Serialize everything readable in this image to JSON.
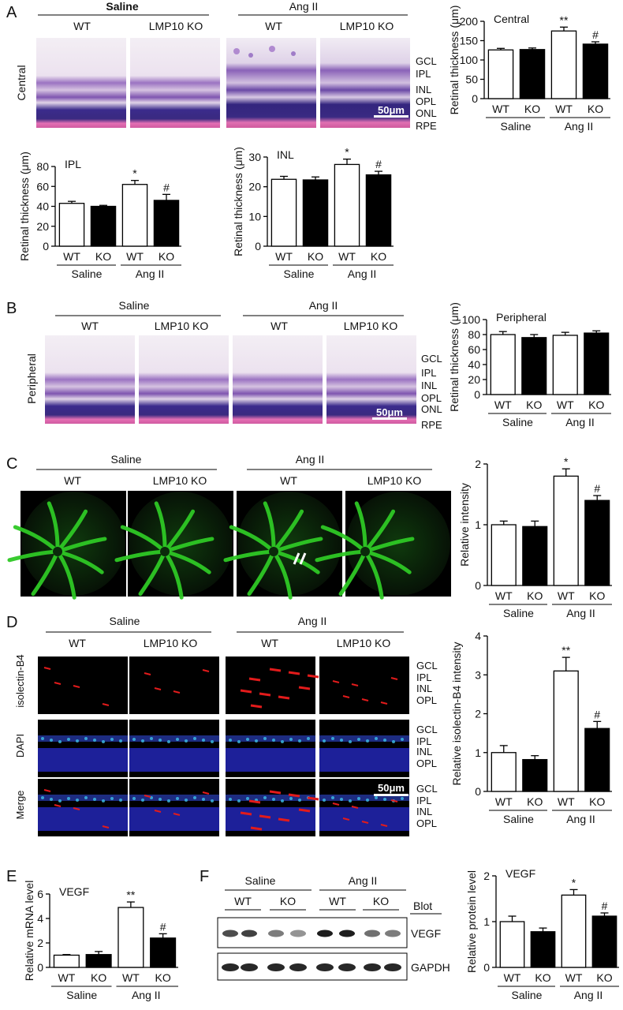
{
  "colors": {
    "wt_bar": "#ffffff",
    "ko_bar": "#000000",
    "he_stain": "#c86fa8",
    "fitc_green": "#2ec825",
    "isolectin_red": "#e21b1b",
    "dapi_blue": "#2226b4"
  },
  "labels": {
    "groups": {
      "saline": "Saline",
      "angii": "Ang II",
      "wt": "WT",
      "lmp10ko": "LMP10 KO",
      "ko": "KO"
    },
    "layers": {
      "gcl": "GCL",
      "ipl": "IPL",
      "inl": "INL",
      "opl": "OPL",
      "onl": "ONL",
      "rpe": "RPE"
    },
    "scale_bar": "50μm",
    "blot": {
      "header": "Blot",
      "vegf": "VEGF",
      "gapdh": "GAPDH"
    }
  },
  "panel_A": {
    "letter": "A",
    "row_label": "Central",
    "charts": [
      {
        "title": "Central",
        "ylabel": "Retinal thickness (μm)",
        "ticks": [
          "0",
          "50",
          "100",
          "150",
          "200"
        ]
      },
      {
        "title": "IPL",
        "ylabel": "Retinal thickness (μm)",
        "ticks": [
          "0",
          "20",
          "40",
          "60",
          "80"
        ]
      },
      {
        "title": "INL",
        "ylabel": "Retinal thickness (μm)",
        "ticks": [
          "0",
          "10",
          "20",
          "30"
        ]
      }
    ],
    "stats": {
      "double": "**",
      "single": "*",
      "hash": "#"
    }
  },
  "panel_B": {
    "letter": "B",
    "row_label": "Peripheral",
    "chart": {
      "title": "Peripheral",
      "ylabel": "Retinal thickness (μm)",
      "ticks": [
        "0",
        "20",
        "40",
        "60",
        "80",
        "100"
      ]
    }
  },
  "panel_C": {
    "letter": "C",
    "chart": {
      "ylabel": "Relative intensity",
      "ticks": [
        "0",
        "1",
        "2"
      ]
    }
  },
  "panel_D": {
    "letter": "D",
    "rows": [
      "isolectin-B4",
      "DAPI",
      "Merge"
    ],
    "chart": {
      "ylabel": "Relative isolectin-B4 intensity",
      "ticks": [
        "0",
        "1",
        "2",
        "3",
        "4"
      ]
    }
  },
  "panel_E": {
    "letter": "E",
    "chart": {
      "title": "VEGF",
      "ylabel": "Relative mRNA level",
      "ticks": [
        "0",
        "2",
        "4",
        "6"
      ]
    }
  },
  "panel_F": {
    "letter": "F",
    "chart": {
      "title": "VEGF",
      "ylabel": "Relative protein level",
      "ticks": [
        "0",
        "1",
        "2"
      ]
    }
  },
  "chart_data": [
    {
      "type": "bar",
      "title": "Central",
      "ylabel": "Retinal thickness (μm)",
      "categories": [
        "Saline WT",
        "Saline KO",
        "Ang II WT",
        "Ang II KO"
      ],
      "values": [
        126,
        127,
        175,
        141
      ],
      "errors": [
        4,
        4,
        10,
        6
      ],
      "annotations": [
        "",
        "",
        "**",
        "#"
      ],
      "ylim": [
        0,
        200
      ]
    },
    {
      "type": "bar",
      "title": "IPL",
      "ylabel": "Retinal thickness (μm)",
      "categories": [
        "Saline WT",
        "Saline KO",
        "Ang II WT",
        "Ang II KO"
      ],
      "values": [
        43,
        40,
        62,
        46
      ],
      "errors": [
        2,
        1,
        4,
        6
      ],
      "annotations": [
        "",
        "",
        "*",
        "#"
      ],
      "ylim": [
        0,
        80
      ]
    },
    {
      "type": "bar",
      "title": "INL",
      "ylabel": "Retinal thickness (μm)",
      "categories": [
        "Saline WT",
        "Saline KO",
        "Ang II WT",
        "Ang II KO"
      ],
      "values": [
        22.5,
        22.3,
        27.5,
        24
      ],
      "errors": [
        1,
        1,
        1.8,
        1.2
      ],
      "annotations": [
        "",
        "",
        "*",
        "#"
      ],
      "ylim": [
        0,
        30
      ]
    },
    {
      "type": "bar",
      "title": "Peripheral",
      "ylabel": "Retinal thickness (μm)",
      "categories": [
        "Saline WT",
        "Saline KO",
        "Ang II WT",
        "Ang II KO"
      ],
      "values": [
        80,
        76,
        79,
        82
      ],
      "errors": [
        4,
        4,
        4,
        3
      ],
      "annotations": [
        "",
        "",
        "",
        ""
      ],
      "ylim": [
        0,
        100
      ]
    },
    {
      "type": "bar",
      "ylabel": "Relative intensity",
      "categories": [
        "Saline WT",
        "Saline KO",
        "Ang II WT",
        "Ang II KO"
      ],
      "values": [
        1.0,
        0.97,
        1.8,
        1.4
      ],
      "errors": [
        0.06,
        0.09,
        0.12,
        0.08
      ],
      "annotations": [
        "",
        "",
        "*",
        "#"
      ],
      "ylim": [
        0,
        2
      ]
    },
    {
      "type": "bar",
      "ylabel": "Relative isolectin-B4 intensity",
      "categories": [
        "Saline WT",
        "Saline KO",
        "Ang II WT",
        "Ang II KO"
      ],
      "values": [
        1.0,
        0.82,
        3.1,
        1.62
      ],
      "errors": [
        0.18,
        0.1,
        0.35,
        0.18
      ],
      "annotations": [
        "",
        "",
        "**",
        "#"
      ],
      "ylim": [
        0,
        4
      ]
    },
    {
      "type": "bar",
      "title": "VEGF",
      "ylabel": "Relative mRNA level",
      "categories": [
        "Saline WT",
        "Saline KO",
        "Ang II WT",
        "Ang II KO"
      ],
      "values": [
        1.0,
        1.05,
        4.9,
        2.4
      ],
      "errors": [
        0.05,
        0.25,
        0.45,
        0.35
      ],
      "annotations": [
        "",
        "",
        "**",
        "#"
      ],
      "ylim": [
        0,
        6
      ]
    },
    {
      "type": "bar",
      "title": "VEGF",
      "ylabel": "Relative protein level",
      "categories": [
        "Saline WT",
        "Saline KO",
        "Ang II WT",
        "Ang II KO"
      ],
      "values": [
        1.0,
        0.78,
        1.58,
        1.12
      ],
      "errors": [
        0.12,
        0.08,
        0.12,
        0.07
      ],
      "annotations": [
        "",
        "",
        "*",
        "#"
      ],
      "ylim": [
        0,
        2
      ]
    }
  ]
}
